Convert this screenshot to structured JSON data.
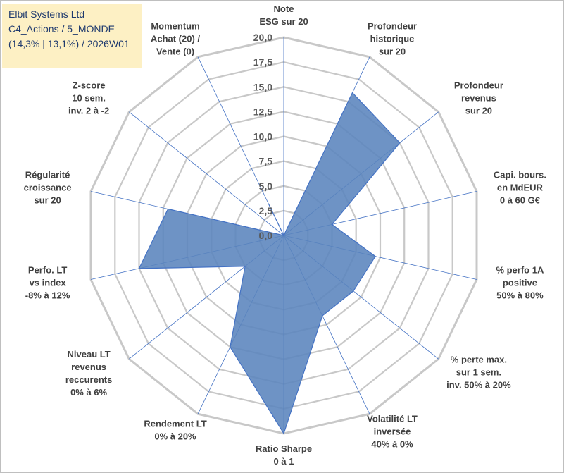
{
  "header": {
    "line1": "Elbit Systems Ltd",
    "line2": "C4_Actions / 5_MONDE",
    "line3": "(14,3% | 13,1%) / 2026W01"
  },
  "colors": {
    "fill": "#5a84bd",
    "stroke": "#4472c4",
    "grid": "#c8c8c8",
    "spoke": "#4472c4"
  },
  "chart_data": {
    "type": "radar",
    "title": "",
    "rmin": 0,
    "rmax": 20,
    "tick_values": [
      0,
      2.5,
      5,
      7.5,
      10,
      12.5,
      15,
      17.5,
      20
    ],
    "tick_labels": [
      "0,0",
      "2,5",
      "5,0",
      "7,5",
      "10,0",
      "12,5",
      "15,0",
      "17,5",
      "20,0"
    ],
    "categories": [
      [
        "Note",
        "ESG sur 20"
      ],
      [
        "Profondeur",
        "historique",
        "sur 20"
      ],
      [
        "Profondeur",
        "revenus",
        "sur 20"
      ],
      [
        "Capi. bours.",
        "en MdEUR",
        "0 à 60 G€"
      ],
      [
        "% perfo 1A",
        "positive",
        "50% à 80%"
      ],
      [
        "% perte max.",
        "sur 1 sem.",
        "inv. 50% à 20%"
      ],
      [
        "Volatilité LT",
        "inversée",
        "40% à 0%"
      ],
      [
        "Ratio Sharpe",
        "0 à 1"
      ],
      [
        "Rendement LT",
        "0% à 20%"
      ],
      [
        "Niveau LT",
        "revenus",
        "reccurents",
        "0% à 6%"
      ],
      [
        "Perfo. LT",
        "vs index",
        "-8% à 12%"
      ],
      [
        "Régularité",
        "croissance",
        "sur 20"
      ],
      [
        "Z-score",
        "10 sem.",
        "inv. 2 à -2"
      ],
      [
        "Momentum",
        "Achat (20) /",
        "Vente (0)"
      ]
    ],
    "series": [
      {
        "name": "Elbit Systems Ltd",
        "values": [
          0,
          16,
          15,
          5,
          9.5,
          9,
          9,
          20,
          12.5,
          5,
          15,
          12,
          0,
          3.5
        ]
      }
    ]
  }
}
